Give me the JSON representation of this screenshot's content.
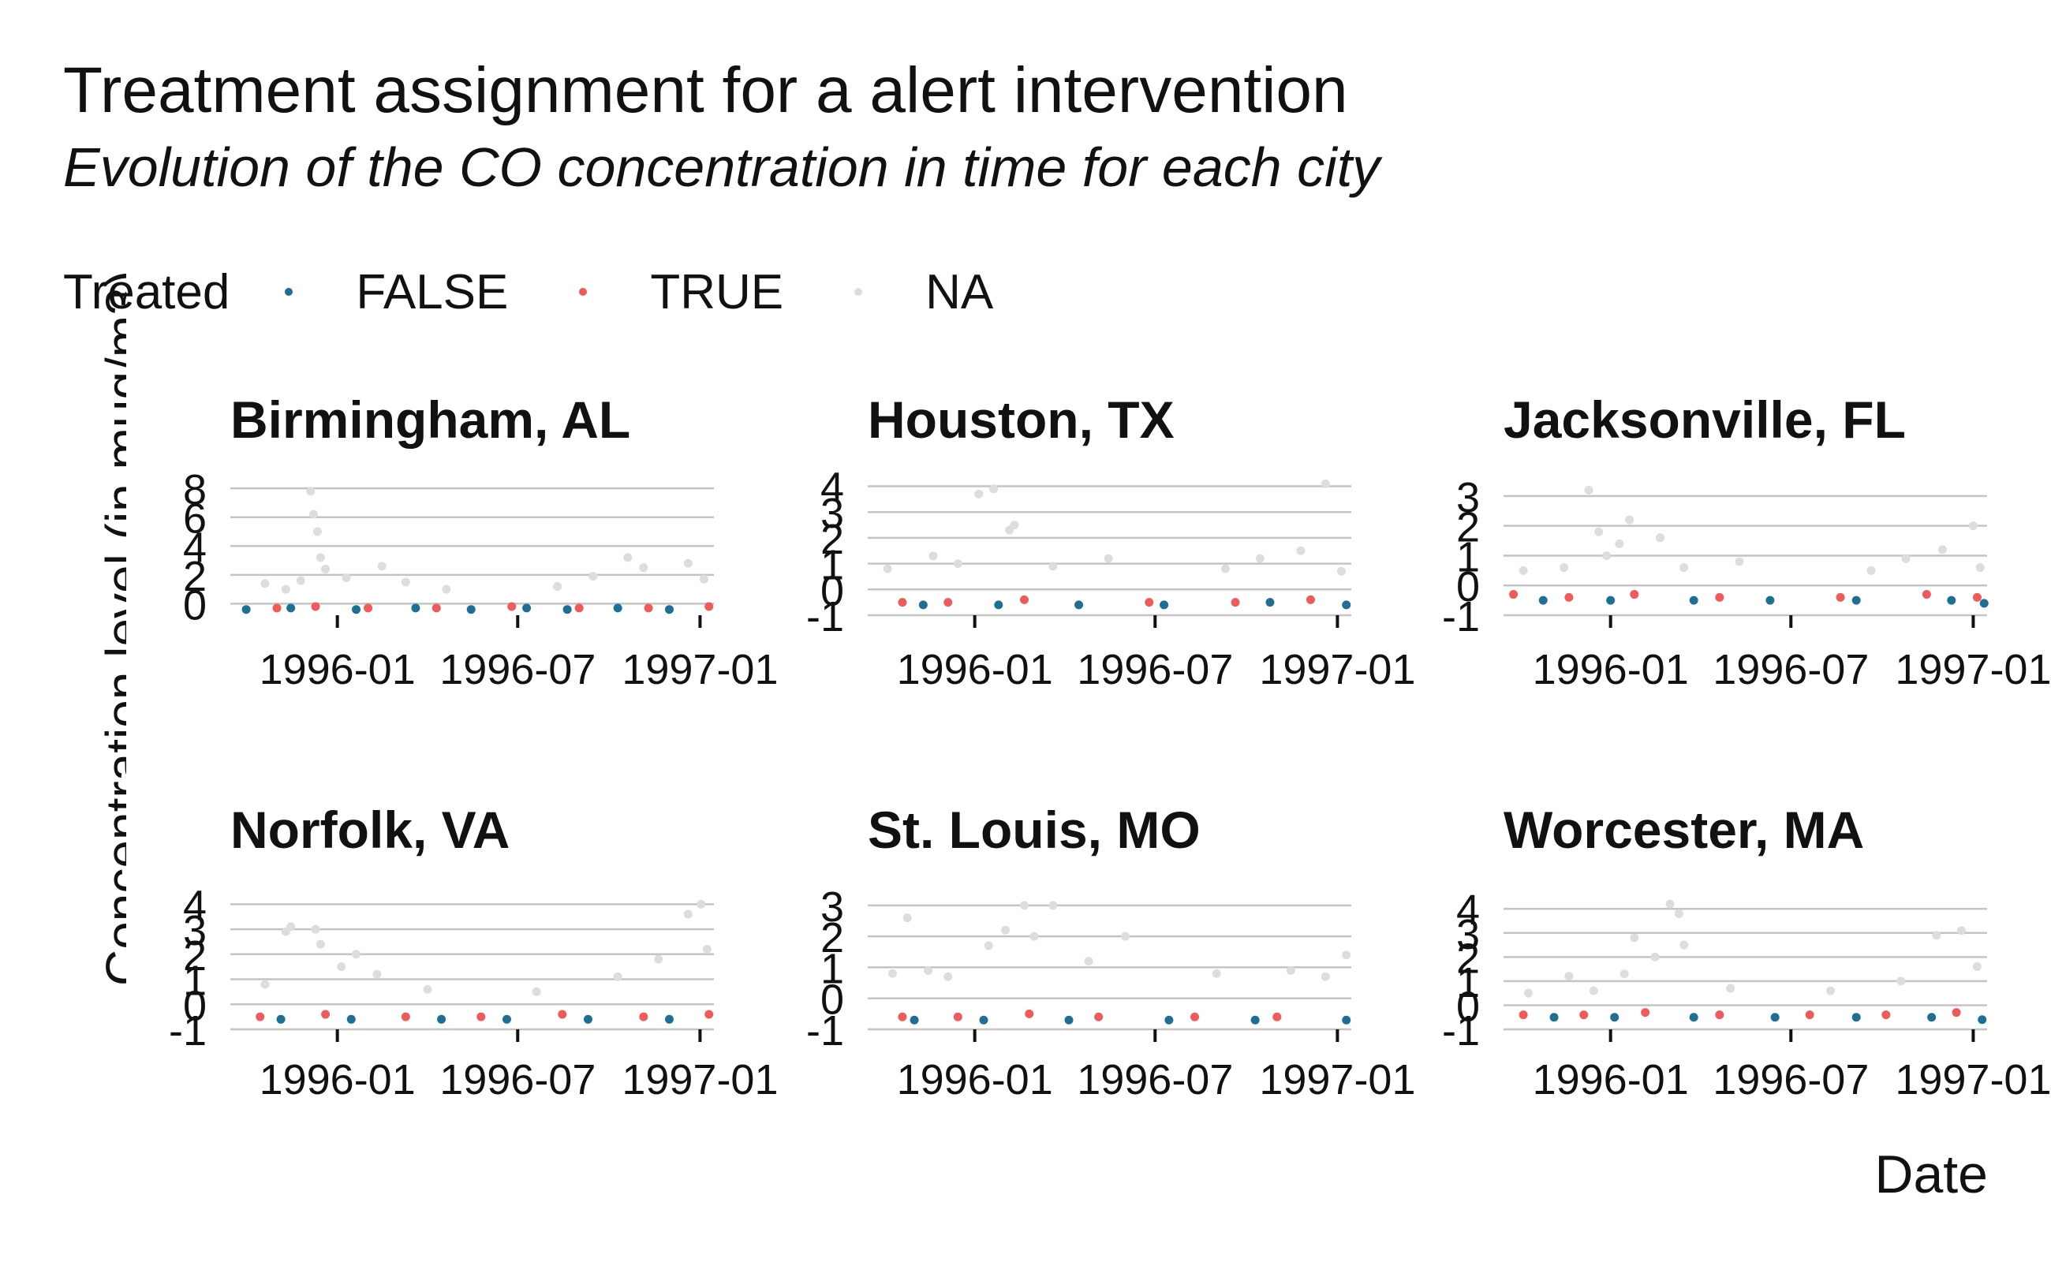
{
  "chart_data": {
    "type": "scatter",
    "title": "Treatment assignment for a alert intervention",
    "subtitle": "Evolution of the CO concentration in time for each city",
    "xlabel": "Date",
    "ylabel": "Concentration level (in mug/m3)",
    "legend": {
      "title": "Treated",
      "position": "top-left",
      "entries": [
        {
          "label": "FALSE",
          "color": "#1f6f95"
        },
        {
          "label": "TRUE",
          "color": "#f05a5a"
        },
        {
          "label": "NA",
          "color": "#dddddd"
        }
      ]
    },
    "x_ticks": [
      "1996-01",
      "1996-07",
      "1997-01"
    ],
    "xlim": [
      "1995-09-15",
      "1997-01-15"
    ],
    "grid": "horizontal",
    "panels": [
      {
        "city": "Birmingham, AL",
        "ylim": [
          -0.8,
          8.5
        ],
        "y_ticks": [
          "0",
          "2",
          "4",
          "6",
          "8"
        ],
        "series": [
          {
            "name": "NA",
            "points": [
              [
                "1995-10-20",
                1.4
              ],
              [
                "1995-11-10",
                1.0
              ],
              [
                "1995-11-25",
                1.6
              ],
              [
                "1995-12-05",
                7.8
              ],
              [
                "1995-12-08",
                6.2
              ],
              [
                "1995-12-12",
                5.0
              ],
              [
                "1995-12-15",
                3.2
              ],
              [
                "1995-12-20",
                2.4
              ],
              [
                "1996-01-10",
                1.8
              ],
              [
                "1996-02-15",
                2.6
              ],
              [
                "1996-03-10",
                1.5
              ],
              [
                "1996-04-20",
                1.0
              ],
              [
                "1996-08-10",
                1.2
              ],
              [
                "1996-09-15",
                1.9
              ],
              [
                "1996-10-20",
                3.2
              ],
              [
                "1996-11-05",
                2.5
              ],
              [
                "1996-12-20",
                2.8
              ],
              [
                "1997-01-05",
                1.7
              ]
            ]
          },
          {
            "name": "TRUE",
            "points": [
              [
                "1995-11-01",
                -0.3
              ],
              [
                "1995-12-10",
                -0.2
              ],
              [
                "1996-02-01",
                -0.3
              ],
              [
                "1996-04-10",
                -0.3
              ],
              [
                "1996-06-25",
                -0.2
              ],
              [
                "1996-09-01",
                -0.3
              ],
              [
                "1996-11-10",
                -0.3
              ],
              [
                "1997-01-10",
                -0.2
              ]
            ]
          },
          {
            "name": "FALSE",
            "points": [
              [
                "1995-10-01",
                -0.4
              ],
              [
                "1995-11-15",
                -0.3
              ],
              [
                "1996-01-20",
                -0.4
              ],
              [
                "1996-03-20",
                -0.3
              ],
              [
                "1996-05-15",
                -0.4
              ],
              [
                "1996-07-10",
                -0.3
              ],
              [
                "1996-08-20",
                -0.4
              ],
              [
                "1996-10-10",
                -0.3
              ],
              [
                "1996-12-01",
                -0.4
              ]
            ]
          }
        ]
      },
      {
        "city": "Houston, TX",
        "ylim": [
          -1,
          4.2
        ],
        "y_ticks": [
          "-1",
          "0",
          "1",
          "2",
          "3",
          "4"
        ],
        "series": [
          {
            "name": "NA",
            "points": [
              [
                "1995-10-05",
                0.8
              ],
              [
                "1995-11-20",
                1.3
              ],
              [
                "1995-12-15",
                1.0
              ],
              [
                "1996-01-05",
                3.7
              ],
              [
                "1996-01-20",
                3.9
              ],
              [
                "1996-02-05",
                2.3
              ],
              [
                "1996-02-10",
                2.5
              ],
              [
                "1996-03-20",
                0.9
              ],
              [
                "1996-05-15",
                1.2
              ],
              [
                "1996-09-10",
                0.8
              ],
              [
                "1996-10-15",
                1.2
              ],
              [
                "1996-11-25",
                1.5
              ],
              [
                "1996-12-20",
                4.1
              ],
              [
                "1997-01-05",
                0.7
              ]
            ]
          },
          {
            "name": "TRUE",
            "points": [
              [
                "1995-10-20",
                -0.5
              ],
              [
                "1995-12-05",
                -0.5
              ],
              [
                "1996-02-20",
                -0.4
              ],
              [
                "1996-06-25",
                -0.5
              ],
              [
                "1996-09-20",
                -0.5
              ],
              [
                "1996-12-05",
                -0.4
              ]
            ]
          },
          {
            "name": "FALSE",
            "points": [
              [
                "1995-11-10",
                -0.6
              ],
              [
                "1996-01-25",
                -0.6
              ],
              [
                "1996-04-15",
                -0.6
              ],
              [
                "1996-07-10",
                -0.6
              ],
              [
                "1996-10-25",
                -0.5
              ],
              [
                "1997-01-10",
                -0.6
              ]
            ]
          }
        ]
      },
      {
        "city": "Jacksonville, FL",
        "ylim": [
          -1,
          3.5
        ],
        "y_ticks": [
          "-1",
          "0",
          "1",
          "2",
          "3"
        ],
        "series": [
          {
            "name": "NA",
            "points": [
              [
                "1995-10-05",
                0.5
              ],
              [
                "1995-11-15",
                0.6
              ],
              [
                "1995-12-10",
                3.2
              ],
              [
                "1995-12-20",
                1.8
              ],
              [
                "1995-12-28",
                1.0
              ],
              [
                "1996-01-10",
                1.4
              ],
              [
                "1996-01-20",
                2.2
              ],
              [
                "1996-02-20",
                1.6
              ],
              [
                "1996-03-15",
                0.6
              ],
              [
                "1996-05-10",
                0.8
              ],
              [
                "1996-09-20",
                0.5
              ],
              [
                "1996-10-25",
                0.9
              ],
              [
                "1996-12-01",
                1.2
              ],
              [
                "1997-01-01",
                2.0
              ],
              [
                "1997-01-08",
                0.6
              ]
            ]
          },
          {
            "name": "TRUE",
            "points": [
              [
                "1995-09-25",
                -0.3
              ],
              [
                "1995-11-20",
                -0.4
              ],
              [
                "1996-01-25",
                -0.3
              ],
              [
                "1996-04-20",
                -0.4
              ],
              [
                "1996-08-20",
                -0.4
              ],
              [
                "1996-11-15",
                -0.3
              ],
              [
                "1997-01-05",
                -0.4
              ]
            ]
          },
          {
            "name": "FALSE",
            "points": [
              [
                "1995-10-25",
                -0.5
              ],
              [
                "1996-01-01",
                -0.5
              ],
              [
                "1996-03-25",
                -0.5
              ],
              [
                "1996-06-10",
                -0.5
              ],
              [
                "1996-09-05",
                -0.5
              ],
              [
                "1996-12-10",
                -0.5
              ],
              [
                "1997-01-12",
                -0.6
              ]
            ]
          }
        ]
      },
      {
        "city": "Norfolk, VA",
        "ylim": [
          -1,
          4.2
        ],
        "y_ticks": [
          "-1",
          "0",
          "1",
          "2",
          "3",
          "4"
        ],
        "series": [
          {
            "name": "NA",
            "points": [
              [
                "1995-10-20",
                0.8
              ],
              [
                "1995-11-10",
                2.9
              ],
              [
                "1995-11-15",
                3.1
              ],
              [
                "1995-12-10",
                3.0
              ],
              [
                "1995-12-15",
                2.4
              ],
              [
                "1996-01-05",
                1.5
              ],
              [
                "1996-01-20",
                2.0
              ],
              [
                "1996-02-10",
                1.2
              ],
              [
                "1996-04-01",
                0.6
              ],
              [
                "1996-07-20",
                0.5
              ],
              [
                "1996-10-10",
                1.1
              ],
              [
                "1996-11-20",
                1.8
              ],
              [
                "1996-12-20",
                3.6
              ],
              [
                "1997-01-02",
                4.0
              ],
              [
                "1997-01-08",
                2.2
              ]
            ]
          },
          {
            "name": "TRUE",
            "points": [
              [
                "1995-10-15",
                -0.5
              ],
              [
                "1995-12-20",
                -0.4
              ],
              [
                "1996-03-10",
                -0.5
              ],
              [
                "1996-05-25",
                -0.5
              ],
              [
                "1996-08-15",
                -0.4
              ],
              [
                "1996-11-05",
                -0.5
              ],
              [
                "1997-01-10",
                -0.4
              ]
            ]
          },
          {
            "name": "FALSE",
            "points": [
              [
                "1995-11-05",
                -0.6
              ],
              [
                "1996-01-15",
                -0.6
              ],
              [
                "1996-04-15",
                -0.6
              ],
              [
                "1996-06-20",
                -0.6
              ],
              [
                "1996-09-10",
                -0.6
              ],
              [
                "1996-12-01",
                -0.6
              ]
            ]
          }
        ]
      },
      {
        "city": "St. Louis, MO",
        "ylim": [
          -1,
          3.2
        ],
        "y_ticks": [
          "-1",
          "0",
          "1",
          "2",
          "3"
        ],
        "series": [
          {
            "name": "NA",
            "points": [
              [
                "1995-10-10",
                0.8
              ],
              [
                "1995-10-25",
                2.6
              ],
              [
                "1995-11-15",
                0.9
              ],
              [
                "1995-12-05",
                0.7
              ],
              [
                "1996-01-15",
                1.7
              ],
              [
                "1996-02-01",
                2.2
              ],
              [
                "1996-02-20",
                3.0
              ],
              [
                "1996-03-01",
                2.0
              ],
              [
                "1996-03-20",
                3.0
              ],
              [
                "1996-04-25",
                1.2
              ],
              [
                "1996-06-01",
                2.0
              ],
              [
                "1996-09-01",
                0.8
              ],
              [
                "1996-11-15",
                0.9
              ],
              [
                "1996-12-20",
                0.7
              ],
              [
                "1997-01-10",
                1.4
              ]
            ]
          },
          {
            "name": "TRUE",
            "points": [
              [
                "1995-10-20",
                -0.6
              ],
              [
                "1995-12-15",
                -0.6
              ],
              [
                "1996-02-25",
                -0.5
              ],
              [
                "1996-05-05",
                -0.6
              ],
              [
                "1996-08-10",
                -0.6
              ],
              [
                "1996-11-01",
                -0.6
              ]
            ]
          },
          {
            "name": "FALSE",
            "points": [
              [
                "1995-11-01",
                -0.7
              ],
              [
                "1996-01-10",
                -0.7
              ],
              [
                "1996-04-05",
                -0.7
              ],
              [
                "1996-07-15",
                -0.7
              ],
              [
                "1996-10-10",
                -0.7
              ],
              [
                "1997-01-10",
                -0.7
              ]
            ]
          }
        ]
      },
      {
        "city": "Worcester, MA",
        "ylim": [
          -1,
          4.4
        ],
        "y_ticks": [
          "-1",
          "0",
          "1",
          "2",
          "3",
          "4"
        ],
        "series": [
          {
            "name": "NA",
            "points": [
              [
                "1995-10-10",
                0.5
              ],
              [
                "1995-11-20",
                1.2
              ],
              [
                "1995-12-15",
                0.6
              ],
              [
                "1996-01-15",
                1.3
              ],
              [
                "1996-01-25",
                2.8
              ],
              [
                "1996-02-15",
                2.0
              ],
              [
                "1996-03-01",
                4.2
              ],
              [
                "1996-03-10",
                3.8
              ],
              [
                "1996-03-15",
                2.5
              ],
              [
                "1996-05-01",
                0.7
              ],
              [
                "1996-08-10",
                0.6
              ],
              [
                "1996-10-20",
                1.0
              ],
              [
                "1996-11-25",
                2.9
              ],
              [
                "1996-12-20",
                3.1
              ],
              [
                "1997-01-05",
                1.6
              ]
            ]
          },
          {
            "name": "TRUE",
            "points": [
              [
                "1995-10-05",
                -0.4
              ],
              [
                "1995-12-05",
                -0.4
              ],
              [
                "1996-02-05",
                -0.3
              ],
              [
                "1996-04-20",
                -0.4
              ],
              [
                "1996-07-20",
                -0.4
              ],
              [
                "1996-10-05",
                -0.4
              ],
              [
                "1996-12-15",
                -0.3
              ]
            ]
          },
          {
            "name": "FALSE",
            "points": [
              [
                "1995-11-05",
                -0.5
              ],
              [
                "1996-01-05",
                -0.5
              ],
              [
                "1996-03-25",
                -0.5
              ],
              [
                "1996-06-15",
                -0.5
              ],
              [
                "1996-09-05",
                -0.5
              ],
              [
                "1996-11-20",
                -0.5
              ],
              [
                "1997-01-10",
                -0.6
              ]
            ]
          }
        ]
      }
    ]
  }
}
